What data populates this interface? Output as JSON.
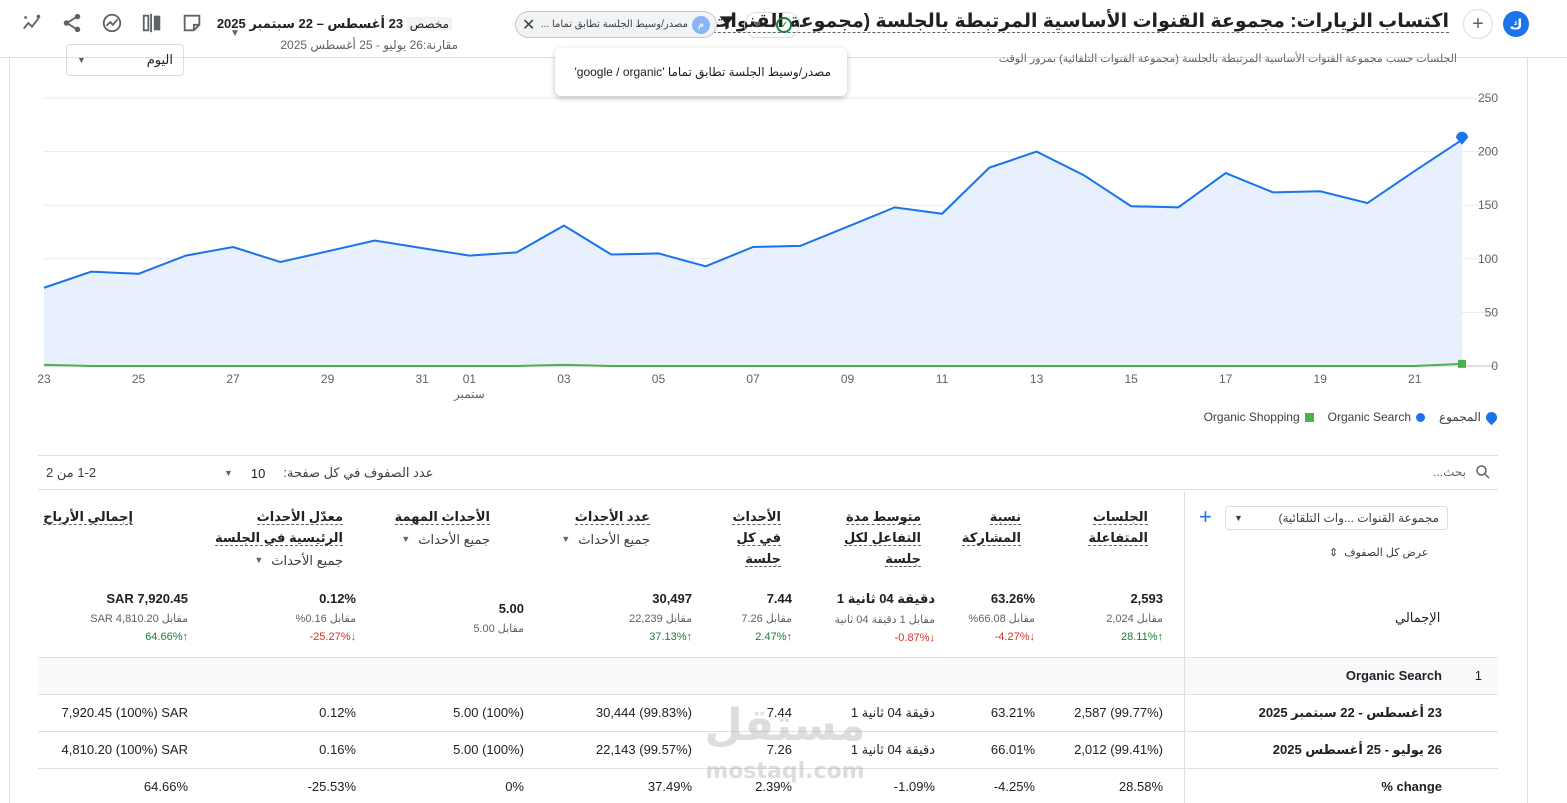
{
  "header": {
    "avatar_letter": "ك",
    "report_title": "اكتساب الزيارات: مجموعة القنوات الأساسية المرتبطة بالجلسة (مجموعة القنوات التلقائية)",
    "filter_chip_text": "مصدر/وسيط الجلسة تطابق تماما ...",
    "filter_chip_icon_letter": "م",
    "date_label": "مخصص",
    "date_range": "23 أغسطس – 22 سبتمبر 2025",
    "compare_range": "مقارنة:26 يوليو - 25 أغسطس 2025",
    "icons": [
      "avatar",
      "add-comparison-icon",
      "check-icon",
      "filter-icon",
      "close-icon",
      "edit-report-icon",
      "compare-icon",
      "insights-icon",
      "share-icon",
      "anomaly-icon"
    ]
  },
  "tooltip": {
    "text": "مصدر/وسيط الجلسة تطابق تماما 'google / organic'"
  },
  "chart_card": {
    "subtitle": "الجلسات حسب مجموعة القنوات الأساسية المرتبطة بالجلسة (مجموعة القنوات التلقائية) بمرور الوقت",
    "interval": "اليوم",
    "legend": [
      "المجموع",
      "Organic Search",
      "Organic Shopping"
    ]
  },
  "chart_data": {
    "type": "area",
    "x": [
      "23",
      "24",
      "25",
      "26",
      "27",
      "28",
      "29",
      "30",
      "31",
      "01",
      "02",
      "03",
      "04",
      "05",
      "06",
      "07",
      "08",
      "09",
      "10",
      "11",
      "12",
      "13",
      "14",
      "15",
      "16",
      "17",
      "18",
      "19",
      "20",
      "21",
      "22"
    ],
    "x_tick_labels": [
      "23",
      "25",
      "27",
      "29",
      "31",
      "01",
      "03",
      "05",
      "07",
      "09",
      "11",
      "13",
      "15",
      "17",
      "19",
      "21"
    ],
    "x_sublabel": "ستمبر",
    "ylim": [
      0,
      250
    ],
    "y_ticks": [
      0,
      50,
      100,
      150,
      200,
      250
    ],
    "grid": true,
    "legend_position": "bottom-right",
    "colors": {
      "organic_search": "#1a73e8",
      "organic_search_fill": "#e8f0fe",
      "organic_shopping": "#4caf50"
    },
    "series": [
      {
        "name": "Organic Search",
        "values": [
          73,
          88,
          86,
          103,
          111,
          97,
          107,
          117,
          110,
          103,
          106,
          131,
          104,
          105,
          93,
          111,
          112,
          130,
          148,
          142,
          185,
          200,
          178,
          149,
          148,
          180,
          162,
          163,
          152,
          182,
          211
        ]
      },
      {
        "name": "Organic Shopping",
        "values": [
          1,
          0,
          0,
          0,
          0,
          0,
          0,
          0,
          0,
          0,
          0,
          1,
          0,
          0,
          0,
          0,
          0,
          0,
          0,
          0,
          0,
          0,
          0,
          0,
          0,
          0,
          0,
          0,
          0,
          0,
          2
        ]
      }
    ]
  },
  "table_controls": {
    "search_placeholder": "بحث...",
    "rows_per_page_label": "عدد الصفوف في كل صفحة:",
    "rows_per_page_value": "10",
    "pagination": "1-2 من 2"
  },
  "table": {
    "dimension_select": "مجموعة القنوات ...وات التلقائية)",
    "show_all_rows": "عرض كل الصفوف",
    "total_label": "الإجمالي",
    "metrics": [
      {
        "title1": "الجلسات",
        "title2": "المتفاعلة",
        "title3": "",
        "sub": ""
      },
      {
        "title1": "نسبة",
        "title2": "المشاركة",
        "title3": "",
        "sub": ""
      },
      {
        "title1": "متوسط مدة",
        "title2": "التفاعل لكل",
        "title3": "جلسة",
        "sub": ""
      },
      {
        "title1": "الأحداث",
        "title2": "في كل",
        "title3": "جلسة",
        "sub": ""
      },
      {
        "title1": "عدد الأحداث",
        "title2": "",
        "title3": "",
        "sub": "جميع الأحداث"
      },
      {
        "title1": "الأحداث المهمة",
        "title2": "",
        "title3": "",
        "sub": "جميع الأحداث"
      },
      {
        "title1": "معدّل الأحداث",
        "title2": "الرئيسية في الجلسة",
        "title3": "",
        "sub": "جميع الأحداث"
      },
      {
        "title1": "إجمالي الأرباح",
        "title2": "",
        "title3": "",
        "sub": ""
      }
    ],
    "totals": [
      {
        "value": "2,593",
        "compare": "مقابل 2,024",
        "change": "28.11%↑",
        "dir": "up"
      },
      {
        "value": "63.26%",
        "compare": "مقابل 66.08%",
        "change": "-4.27%↓",
        "dir": "down"
      },
      {
        "value": "1 دقيقة 04 ثانية",
        "compare": "مقابل 1 دقيقة 04 ثانية",
        "change": "-0.87%↓",
        "dir": "down"
      },
      {
        "value": "7.44",
        "compare": "مقابل 7.26",
        "change": "2.47%↑",
        "dir": "up"
      },
      {
        "value": "30,497",
        "compare": "مقابل 22,239",
        "change": "37.13%↑",
        "dir": "up"
      },
      {
        "value": "5.00",
        "compare": "مقابل 5.00",
        "change": "",
        "dir": ""
      },
      {
        "value": "0.12%",
        "compare": "مقابل 0.16%",
        "change": "-25.27%↓",
        "dir": "down"
      },
      {
        "value": "SAR 7,920.45",
        "compare": "مقابل SAR 4,810.20",
        "change": "64.66%↑",
        "dir": "up"
      }
    ],
    "rows": [
      {
        "index": "1",
        "dimension": "Organic Search",
        "group": true,
        "cells": [
          "",
          "",
          "",
          "",
          "",
          "",
          "",
          ""
        ]
      },
      {
        "index": "",
        "dimension": "23 أغسطس - 22 سبتمبر 2025",
        "group": false,
        "cells": [
          "2,587 (99.77%)",
          "63.21%",
          "1 دقيقة 04 ثانية",
          "7.44",
          "30,444 (99.83%)",
          "5.00 (100%)",
          "0.12%",
          "7,920.45 (100%) SAR"
        ]
      },
      {
        "index": "",
        "dimension": "26 يوليو - 25 أغسطس 2025",
        "group": false,
        "cells": [
          "2,012 (99.41%)",
          "66.01%",
          "1 دقيقة 04 ثانية",
          "7.26",
          "22,143 (99.57%)",
          "5.00 (100%)",
          "0.16%",
          "4,810.20 (100%) SAR"
        ]
      },
      {
        "index": "",
        "dimension": "change %",
        "group": false,
        "cells": [
          "28.58%",
          "-4.25%",
          "-1.09%",
          "2.39%",
          "37.49%",
          "0%",
          "-25.53%",
          "64.66%"
        ]
      }
    ]
  },
  "watermark": {
    "text_ar": "مستقل",
    "text_en": "mostaql.com"
  }
}
